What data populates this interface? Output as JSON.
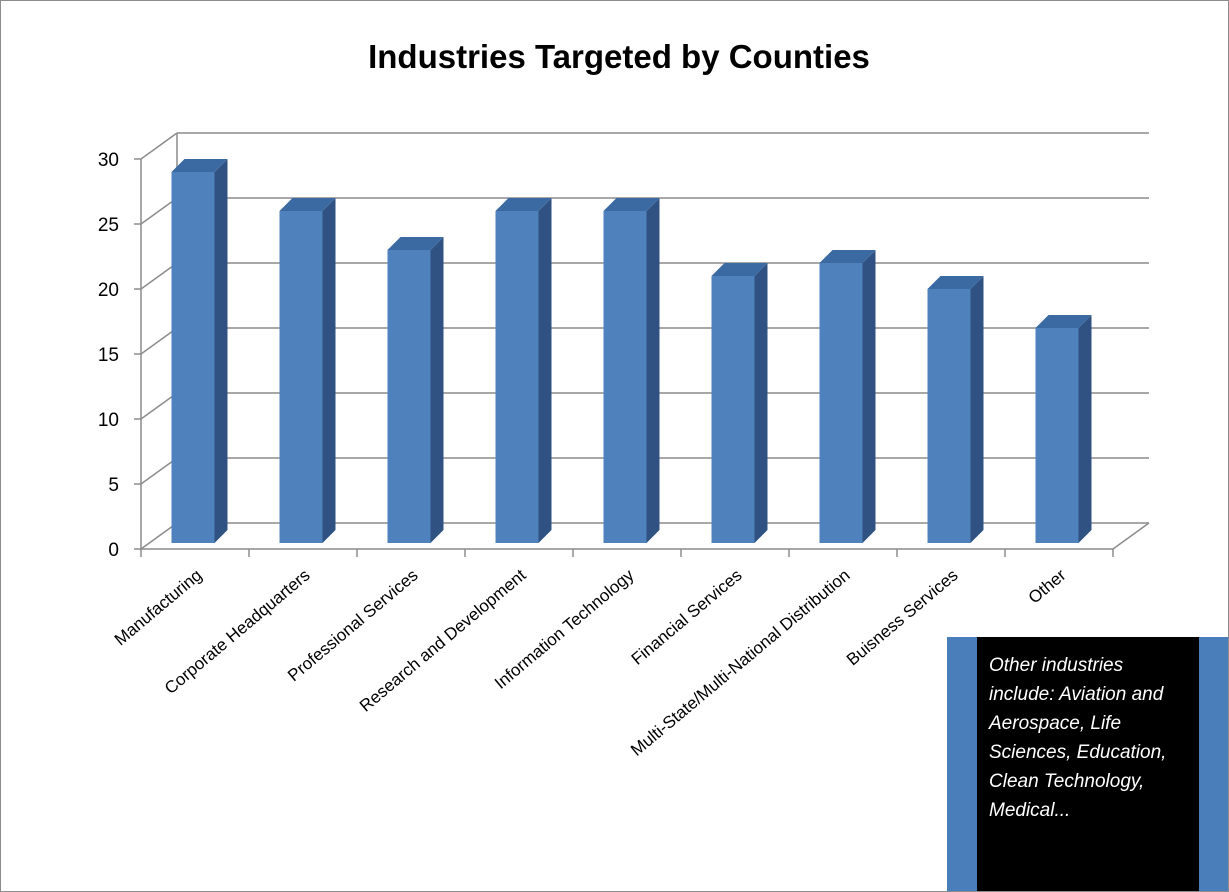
{
  "chart_data": {
    "type": "bar",
    "title": "Industries Targeted by Counties",
    "xlabel": "",
    "ylabel": "",
    "categories": [
      "Manufacturing",
      "Corporate Headquarters",
      "Professional Services",
      "Research and Development",
      "Information Technology",
      "Financial Services",
      "Multi-State/Multi-National Distribution",
      "Buisness Services",
      "Other"
    ],
    "values": [
      29,
      26,
      23,
      26,
      26,
      21,
      22,
      20,
      17
    ],
    "ylim": [
      0,
      30
    ],
    "yticks": [
      0,
      5,
      10,
      15,
      20,
      25,
      30
    ],
    "grid": true,
    "legend": "none",
    "style": "3d-column",
    "colors": {
      "bar_front": "#4f81bd",
      "bar_side": "#2f5283",
      "bar_top": "#3b6aa3",
      "grid": "#8c8c8c"
    }
  },
  "annotation": {
    "text": "Other industries include: Aviation and Aerospace, Life Sciences, Education, Clean Technology, Medical..."
  }
}
